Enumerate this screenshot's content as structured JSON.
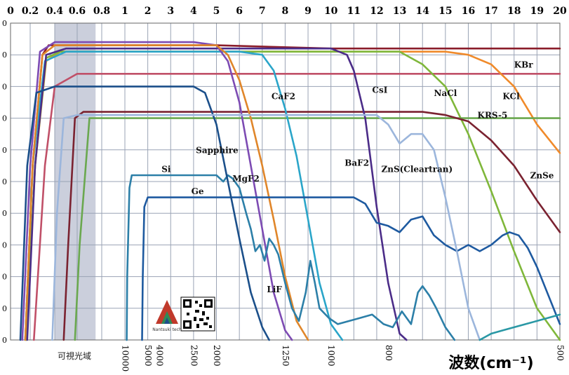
{
  "chart_data": {
    "type": "line",
    "top_axis": {
      "ticks": [
        {
          "label": "0",
          "v": 0
        },
        {
          "label": "0.2",
          "v": 0.2
        },
        {
          "label": "0.4",
          "v": 0.4
        },
        {
          "label": "0.6",
          "v": 0.6
        },
        {
          "label": "0.8",
          "v": 0.8
        },
        {
          "label": "1",
          "v": 1
        },
        {
          "label": "2",
          "v": 2
        },
        {
          "label": "3",
          "v": 3
        },
        {
          "label": "4",
          "v": 4
        },
        {
          "label": "5",
          "v": 5
        },
        {
          "label": "6",
          "v": 6
        },
        {
          "label": "7",
          "v": 7
        },
        {
          "label": "8",
          "v": 8
        },
        {
          "label": "9",
          "v": 9
        },
        {
          "label": "10",
          "v": 10
        },
        {
          "label": "11",
          "v": 11
        },
        {
          "label": "12",
          "v": 12
        },
        {
          "label": "13",
          "v": 13
        },
        {
          "label": "14",
          "v": 14
        },
        {
          "label": "15",
          "v": 15
        },
        {
          "label": "16",
          "v": 16
        },
        {
          "label": "17",
          "v": 17
        },
        {
          "label": "18",
          "v": 18
        },
        {
          "label": "19",
          "v": 19
        },
        {
          "label": "20",
          "v": 20
        }
      ]
    },
    "bottom_axis": {
      "title": "波数(cm⁻¹)",
      "ticks": [
        {
          "label": "10000",
          "v": 1.0
        },
        {
          "label": "5000",
          "v": 2.0
        },
        {
          "label": "4000",
          "v": 2.5
        },
        {
          "label": "2500",
          "v": 4.0
        },
        {
          "label": "2000",
          "v": 5.0
        },
        {
          "label": "1250",
          "v": 8.0
        },
        {
          "label": "1000",
          "v": 10.0
        },
        {
          "label": "800",
          "v": 12.5
        },
        {
          "label": "500",
          "v": 20.0
        }
      ]
    },
    "visible_region": {
      "label": "可視光域",
      "from": 0.4,
      "to": 0.75
    },
    "y_ticks": [
      "0",
      "0",
      "0",
      "0",
      "0",
      "0",
      "0",
      "0",
      "0",
      "0",
      "0"
    ],
    "series": [
      {
        "name": "KBr",
        "color": "#8a1c2a",
        "label_at": [
          18.0,
          86
        ],
        "points": [
          [
            0.15,
            0
          ],
          [
            0.22,
            55
          ],
          [
            0.3,
            90
          ],
          [
            0.35,
            93
          ],
          [
            1,
            93
          ],
          [
            5,
            93
          ],
          [
            10,
            92
          ],
          [
            15,
            92
          ],
          [
            18,
            92
          ],
          [
            20,
            92
          ]
        ]
      },
      {
        "name": "CsI",
        "color": "#c05068",
        "label_at": [
          11.8,
          78
        ],
        "points": [
          [
            0.23,
            0
          ],
          [
            0.32,
            55
          ],
          [
            0.4,
            80
          ],
          [
            0.6,
            84
          ],
          [
            1,
            84
          ],
          [
            5,
            84
          ],
          [
            10,
            84
          ],
          [
            15,
            84
          ],
          [
            18,
            84
          ],
          [
            20,
            84
          ]
        ]
      },
      {
        "name": "KCl",
        "color": "#f08a2a",
        "label_at": [
          17.5,
          76
        ],
        "points": [
          [
            0.16,
            0
          ],
          [
            0.24,
            55
          ],
          [
            0.33,
            88
          ],
          [
            0.45,
            91
          ],
          [
            1,
            91
          ],
          [
            5,
            91
          ],
          [
            10,
            91
          ],
          [
            15,
            91
          ],
          [
            16,
            90
          ],
          [
            17,
            87
          ],
          [
            18,
            80
          ],
          [
            19,
            68
          ],
          [
            20,
            59
          ]
        ]
      },
      {
        "name": "NaCl",
        "color": "#7fb73a",
        "label_at": [
          14.5,
          77
        ],
        "points": [
          [
            0.16,
            0
          ],
          [
            0.24,
            55
          ],
          [
            0.33,
            89
          ],
          [
            0.45,
            91
          ],
          [
            1,
            91
          ],
          [
            5,
            91
          ],
          [
            10,
            91
          ],
          [
            13,
            91
          ],
          [
            14,
            87
          ],
          [
            15,
            80
          ],
          [
            16,
            65
          ],
          [
            17,
            47
          ],
          [
            18,
            28
          ],
          [
            19,
            10
          ],
          [
            20,
            0
          ]
        ]
      },
      {
        "name": "KRS-5",
        "color": "#6aa84f",
        "label_at": [
          16.4,
          70
        ],
        "points": [
          [
            0.58,
            0
          ],
          [
            0.62,
            30
          ],
          [
            0.7,
            70
          ],
          [
            0.75,
            70
          ],
          [
            1,
            70
          ],
          [
            5,
            70
          ],
          [
            10,
            70
          ],
          [
            15,
            70
          ],
          [
            18,
            70
          ],
          [
            20,
            70
          ]
        ]
      },
      {
        "name": "ZnSe",
        "color": "#7a2230",
        "label_at": [
          18.7,
          51
        ],
        "points": [
          [
            0.48,
            0
          ],
          [
            0.52,
            30
          ],
          [
            0.58,
            70
          ],
          [
            0.65,
            72
          ],
          [
            1,
            72
          ],
          [
            5,
            72
          ],
          [
            10,
            72
          ],
          [
            14,
            72
          ],
          [
            15,
            71
          ],
          [
            16,
            69
          ],
          [
            17,
            63
          ],
          [
            18,
            55
          ],
          [
            19,
            44
          ],
          [
            20,
            34
          ]
        ]
      },
      {
        "name": "CaF2",
        "color": "#2aa5c9",
        "label_at": [
          7.4,
          76
        ],
        "points": [
          [
            0.15,
            0
          ],
          [
            0.22,
            55
          ],
          [
            0.32,
            88
          ],
          [
            0.5,
            91
          ],
          [
            1,
            91
          ],
          [
            6,
            91
          ],
          [
            7,
            90
          ],
          [
            7.5,
            85
          ],
          [
            8,
            73
          ],
          [
            8.5,
            58
          ],
          [
            9,
            38
          ],
          [
            9.5,
            18
          ],
          [
            10,
            5
          ],
          [
            10.5,
            0
          ]
        ]
      },
      {
        "name": "BaF2",
        "color": "#4b2c88",
        "label_at": [
          10.6,
          55
        ],
        "points": [
          [
            0.17,
            0
          ],
          [
            0.24,
            55
          ],
          [
            0.33,
            90
          ],
          [
            0.5,
            92
          ],
          [
            1,
            92
          ],
          [
            8,
            92
          ],
          [
            10,
            92
          ],
          [
            10.7,
            90
          ],
          [
            11,
            85
          ],
          [
            11.5,
            70
          ],
          [
            12,
            42
          ],
          [
            12.5,
            18
          ],
          [
            13,
            2
          ],
          [
            13.3,
            0
          ]
        ]
      },
      {
        "name": "MgF2",
        "color": "#7d4bb3",
        "label_at": [
          5.7,
          50
        ],
        "points": [
          [
            0.12,
            0
          ],
          [
            0.2,
            55
          ],
          [
            0.28,
            91
          ],
          [
            0.4,
            94
          ],
          [
            1,
            94
          ],
          [
            4,
            94
          ],
          [
            5,
            93
          ],
          [
            5.5,
            88
          ],
          [
            6,
            75
          ],
          [
            6.5,
            55
          ],
          [
            7,
            35
          ],
          [
            7.5,
            15
          ],
          [
            8,
            3
          ],
          [
            8.3,
            0
          ]
        ]
      },
      {
        "name": "Sapphire",
        "color": "#e0862a",
        "label_at": [
          4.1,
          59
        ],
        "points": [
          [
            0.15,
            0
          ],
          [
            0.22,
            55
          ],
          [
            0.3,
            90
          ],
          [
            0.4,
            93
          ],
          [
            1,
            93
          ],
          [
            4,
            93
          ],
          [
            5,
            93
          ],
          [
            5.5,
            90
          ],
          [
            6,
            82
          ],
          [
            6.5,
            70
          ],
          [
            7,
            55
          ],
          [
            7.5,
            38
          ],
          [
            8,
            20
          ],
          [
            8.5,
            6
          ],
          [
            9,
            0
          ]
        ]
      },
      {
        "name": "Si",
        "color": "#2c7fa8",
        "label_at": [
          2.6,
          53
        ],
        "points": [
          [
            1.08,
            0
          ],
          [
            1.1,
            20
          ],
          [
            1.2,
            48
          ],
          [
            1.3,
            52
          ],
          [
            2,
            52
          ],
          [
            4,
            52
          ],
          [
            5,
            52
          ],
          [
            5.3,
            50
          ],
          [
            5.5,
            52
          ],
          [
            5.7,
            51
          ],
          [
            6,
            48
          ],
          [
            6.3,
            40
          ],
          [
            6.5,
            35
          ],
          [
            6.7,
            28
          ],
          [
            6.9,
            30
          ],
          [
            7.1,
            25
          ],
          [
            7.3,
            32
          ],
          [
            7.5,
            30
          ],
          [
            7.7,
            27
          ],
          [
            8,
            18
          ],
          [
            8.3,
            10
          ],
          [
            8.6,
            6
          ],
          [
            8.9,
            15
          ],
          [
            9.1,
            25
          ],
          [
            9.3,
            18
          ],
          [
            9.5,
            10
          ],
          [
            9.9,
            7
          ],
          [
            10.3,
            5
          ],
          [
            10.8,
            6
          ],
          [
            11.3,
            7
          ],
          [
            11.8,
            8
          ],
          [
            12.3,
            5
          ],
          [
            12.7,
            4
          ],
          [
            13.1,
            9
          ],
          [
            13.5,
            5
          ],
          [
            13.8,
            15
          ],
          [
            14,
            17
          ],
          [
            14.3,
            14
          ],
          [
            14.6,
            10
          ],
          [
            15,
            4
          ],
          [
            15.4,
            0
          ]
        ]
      },
      {
        "name": "Ge",
        "color": "#1e5aa0",
        "label_at": [
          3.9,
          46
        ],
        "points": [
          [
            1.75,
            0
          ],
          [
            1.78,
            20
          ],
          [
            1.85,
            42
          ],
          [
            2,
            45
          ],
          [
            4,
            45
          ],
          [
            8,
            45
          ],
          [
            10,
            45
          ],
          [
            11,
            45
          ],
          [
            11.5,
            43
          ],
          [
            12,
            37
          ],
          [
            12.5,
            36
          ],
          [
            13,
            34
          ],
          [
            13.5,
            38
          ],
          [
            14,
            39
          ],
          [
            14.5,
            33
          ],
          [
            15,
            30
          ],
          [
            15.5,
            28
          ],
          [
            16,
            30
          ],
          [
            16.5,
            28
          ],
          [
            17,
            30
          ],
          [
            17.5,
            33
          ],
          [
            17.8,
            34
          ],
          [
            18.2,
            33
          ],
          [
            18.6,
            29
          ],
          [
            19,
            23
          ],
          [
            19.5,
            14
          ],
          [
            20,
            5
          ]
        ]
      },
      {
        "name": "LiF",
        "color": "#1b4f8a",
        "label_at": [
          7.2,
          15
        ],
        "points": [
          [
            0.1,
            0
          ],
          [
            0.17,
            55
          ],
          [
            0.25,
            78
          ],
          [
            0.4,
            80
          ],
          [
            1,
            80
          ],
          [
            3,
            80
          ],
          [
            4,
            80
          ],
          [
            4.5,
            78
          ],
          [
            5,
            68
          ],
          [
            5.5,
            50
          ],
          [
            6,
            32
          ],
          [
            6.5,
            15
          ],
          [
            7,
            4
          ],
          [
            7.3,
            0
          ]
        ]
      },
      {
        "name": "ZnS(Cleartran)",
        "color": "#9cb6dc",
        "label_at": [
          12.2,
          53
        ],
        "points": [
          [
            0.38,
            0
          ],
          [
            0.42,
            40
          ],
          [
            0.48,
            70
          ],
          [
            0.6,
            71
          ],
          [
            1,
            71
          ],
          [
            5,
            71
          ],
          [
            10,
            71
          ],
          [
            12,
            71
          ],
          [
            12.5,
            68
          ],
          [
            13,
            62
          ],
          [
            13.5,
            65
          ],
          [
            14,
            65
          ],
          [
            14.5,
            60
          ],
          [
            15,
            45
          ],
          [
            15.5,
            28
          ],
          [
            16,
            10
          ],
          [
            16.5,
            0
          ]
        ]
      },
      {
        "name": "",
        "color": "#2a98a5",
        "label_at": null,
        "points": [
          [
            16.5,
            0
          ],
          [
            17,
            2
          ],
          [
            17.5,
            3
          ],
          [
            18,
            4
          ],
          [
            18.5,
            5
          ],
          [
            19,
            6
          ],
          [
            19.5,
            7
          ],
          [
            20,
            8
          ]
        ]
      }
    ]
  },
  "logo": {
    "caption": "Nantsuki tech"
  }
}
